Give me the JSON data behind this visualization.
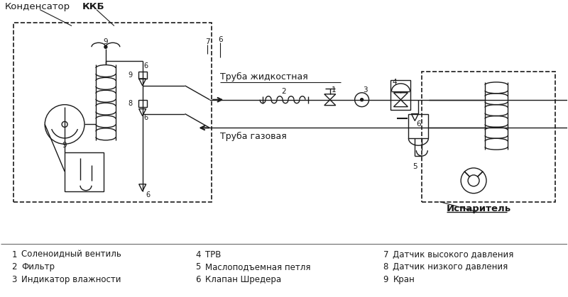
{
  "bg_color": "#ffffff",
  "line_color": "#1a1a1a",
  "labels": {
    "kondensator": "Конденсатор",
    "kkb": "ККБ",
    "truba_zhidkostnaya": "Труба жидкостная",
    "truba_gazovaya": "Труба газовая",
    "isparitel": "Испаритель",
    "legend_rows": [
      [
        [
          "1",
          "Соленоидный вентиль"
        ],
        [
          "4",
          "ТРВ"
        ],
        [
          "7",
          "Датчик высокого давления"
        ]
      ],
      [
        [
          "2",
          "Фильтр"
        ],
        [
          "5",
          "Маслоподъемная петля"
        ],
        [
          "8",
          "Датчик низкого давления"
        ]
      ],
      [
        [
          "3",
          "Индикатор влажности"
        ],
        [
          "6",
          "Клапан Шредера"
        ],
        [
          "9",
          "Кран"
        ]
      ]
    ]
  }
}
